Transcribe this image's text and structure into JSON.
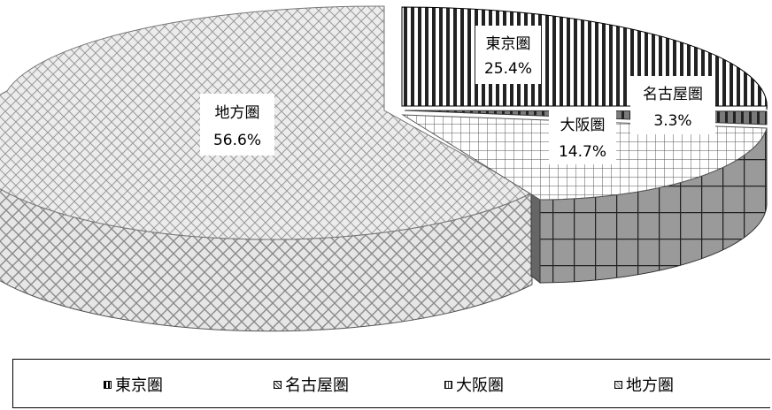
{
  "chart_data": {
    "type": "pie",
    "categories": [
      "東京圏",
      "名古屋圏",
      "大阪圏",
      "地方圏"
    ],
    "values": [
      25.4,
      3.3,
      14.7,
      56.6
    ],
    "data_labels": [
      {
        "name": "東京圏",
        "value": "25.4%"
      },
      {
        "name": "名古屋圏",
        "value": "3.3%"
      },
      {
        "name": "大阪圏",
        "value": "14.7%"
      },
      {
        "name": "地方圏",
        "value": "56.6%"
      }
    ],
    "title": "",
    "legend_position": "bottom",
    "style": "3d-exploded-pie-with-patterns"
  },
  "legend": {
    "items": [
      "東京圏",
      "名古屋圏",
      "大阪圏",
      "地方圏"
    ]
  }
}
